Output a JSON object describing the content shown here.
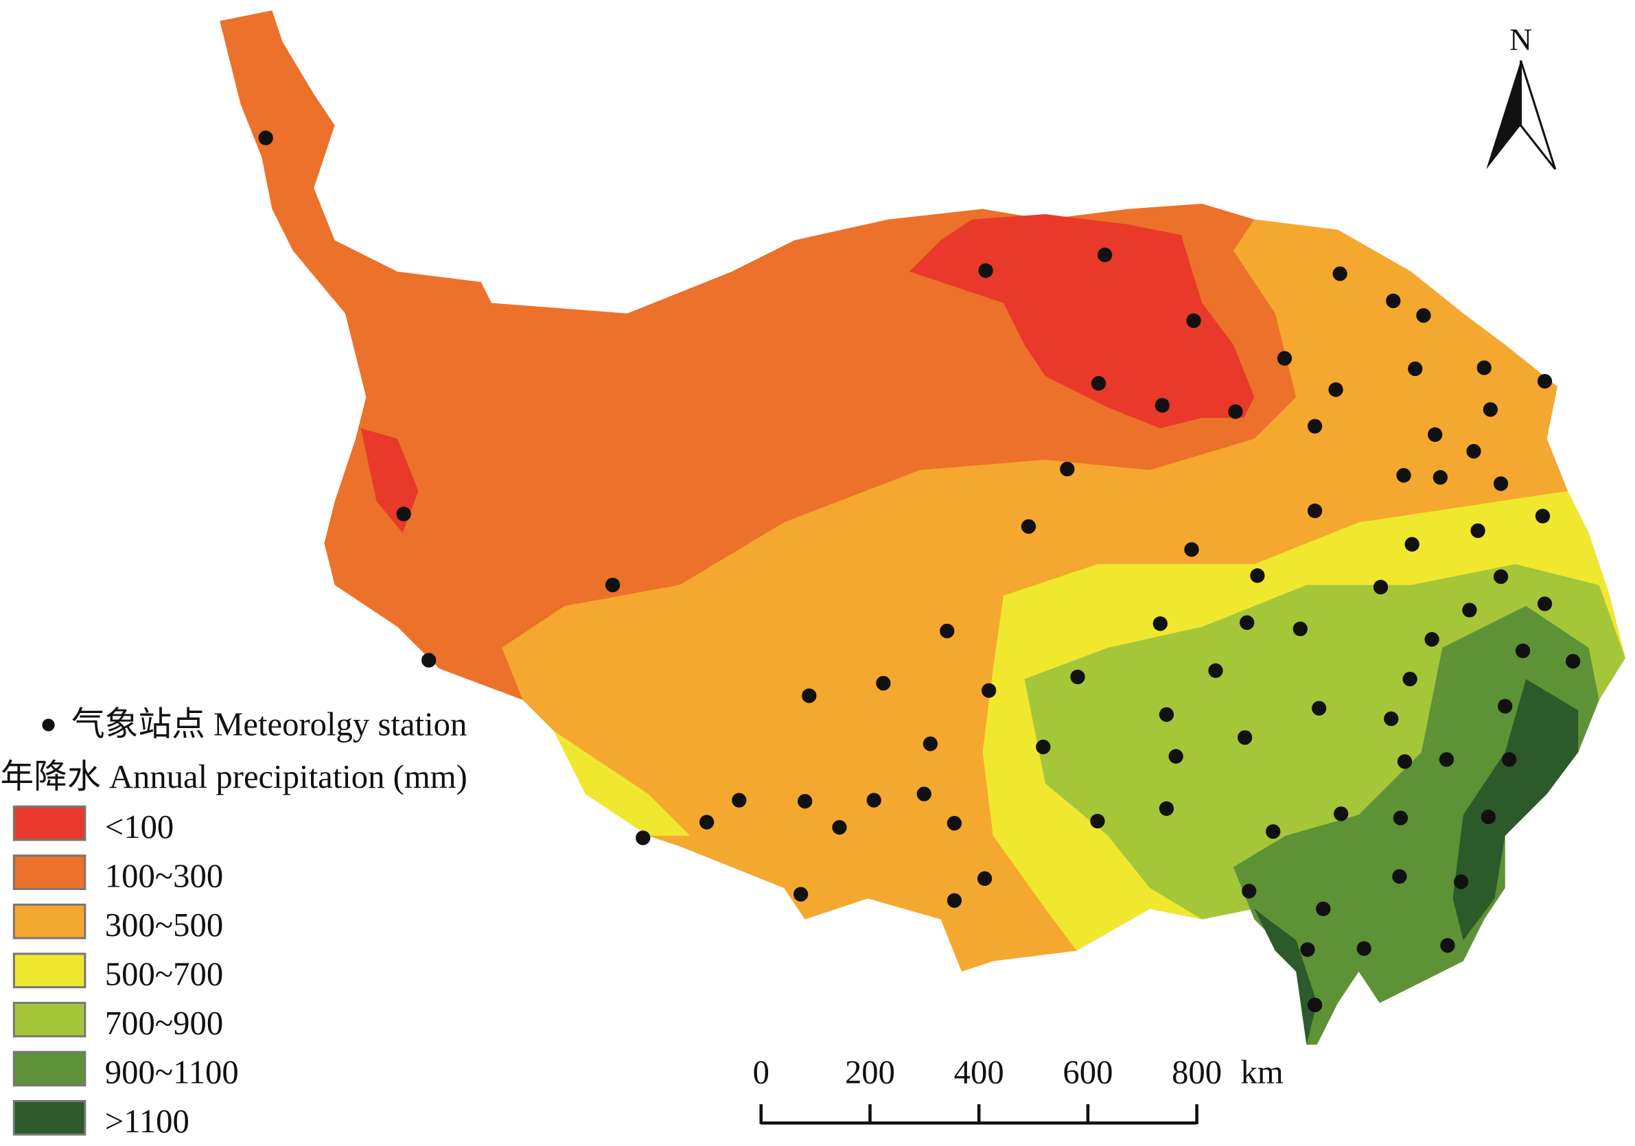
{
  "legend": {
    "station_label": "气象站点 Meteorolgy station",
    "title": "年降水 Annual precipitation (mm)",
    "items": [
      {
        "label": "<100",
        "color": "#e8392a"
      },
      {
        "label": "100~300",
        "color": "#ec712b"
      },
      {
        "label": "300~500",
        "color": "#f5a830"
      },
      {
        "label": "500~700",
        "color": "#f0e82f"
      },
      {
        "label": "700~900",
        "color": "#a6c63a"
      },
      {
        "label": "900~1100",
        "color": "#5e9236"
      },
      {
        "label": ">1100",
        "color": "#2c5a2a"
      }
    ]
  },
  "north": "N",
  "scale_bar": {
    "ticks": [
      0,
      200,
      400,
      600,
      800
    ],
    "unit": "km"
  }
}
